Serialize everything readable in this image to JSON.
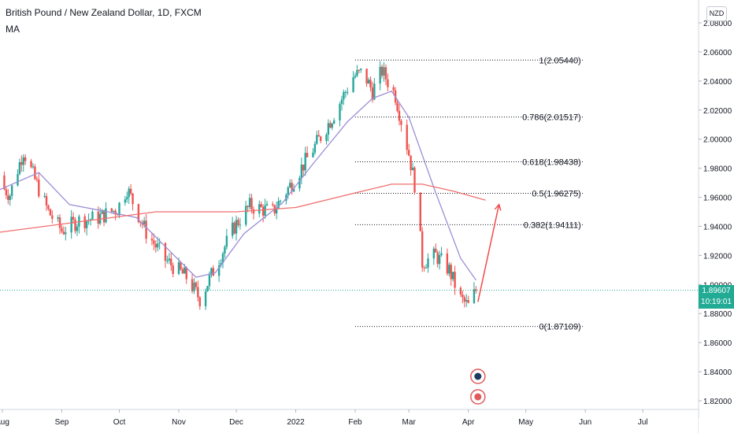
{
  "header": {
    "title": "British Pound / New Zealand Dollar, 1D, FXCM",
    "indicator": "MA",
    "currency_button": "NZD"
  },
  "price_tag": {
    "price": "1.89607",
    "countdown": "10:19:01"
  },
  "colors": {
    "up": "#26a69a",
    "down": "#ef5350",
    "ma_fast": "#9c8ed6",
    "ma_slow": "#f06e6e",
    "arrow": "#f04a4a",
    "fib": "#131722",
    "current_price_line": "#22ab94"
  },
  "chart_data": {
    "type": "candlestick",
    "symbol": "GBPNZD",
    "timeframe": "1D",
    "ylim": [
      1.815,
      2.085
    ],
    "y_ticks": [
      "2.08000",
      "2.06000",
      "2.04000",
      "2.02000",
      "2.00000",
      "1.98000",
      "1.96000",
      "1.94000",
      "1.92000",
      "1.90000",
      "1.88000",
      "1.86000",
      "1.84000",
      "1.82000"
    ],
    "x_ticks": [
      {
        "label": "Aug",
        "date": "2021-08-01"
      },
      {
        "label": "Sep",
        "date": "2021-09-01"
      },
      {
        "label": "Oct",
        "date": "2021-10-01"
      },
      {
        "label": "Nov",
        "date": "2021-11-01"
      },
      {
        "label": "Dec",
        "date": "2021-12-01"
      },
      {
        "label": "2022",
        "date": "2022-01-01"
      },
      {
        "label": "Feb",
        "date": "2022-02-01"
      },
      {
        "label": "Mar",
        "date": "2022-03-01"
      },
      {
        "label": "Apr",
        "date": "2022-04-01"
      },
      {
        "label": "May",
        "date": "2022-05-01"
      },
      {
        "label": "Jun",
        "date": "2022-06-01"
      },
      {
        "label": "Jul",
        "date": "2022-07-01"
      }
    ],
    "price_anchors": [
      {
        "date": "2021-07-25",
        "close": 1.975
      },
      {
        "date": "2021-08-05",
        "close": 1.962
      },
      {
        "date": "2021-08-12",
        "close": 1.992
      },
      {
        "date": "2021-08-18",
        "close": 1.972
      },
      {
        "date": "2021-08-25",
        "close": 1.95
      },
      {
        "date": "2021-09-01",
        "close": 1.937
      },
      {
        "date": "2021-09-10",
        "close": 1.944
      },
      {
        "date": "2021-09-20",
        "close": 1.946
      },
      {
        "date": "2021-09-30",
        "close": 1.952
      },
      {
        "date": "2021-10-05",
        "close": 1.966
      },
      {
        "date": "2021-10-15",
        "close": 1.936
      },
      {
        "date": "2021-10-25",
        "close": 1.917
      },
      {
        "date": "2021-11-05",
        "close": 1.905
      },
      {
        "date": "2021-11-12",
        "close": 1.89
      },
      {
        "date": "2021-11-20",
        "close": 1.912
      },
      {
        "date": "2021-11-30",
        "close": 1.94
      },
      {
        "date": "2021-12-08",
        "close": 1.954
      },
      {
        "date": "2021-12-20",
        "close": 1.95
      },
      {
        "date": "2021-12-31",
        "close": 1.972
      },
      {
        "date": "2022-01-10",
        "close": 1.993
      },
      {
        "date": "2022-01-20",
        "close": 2.015
      },
      {
        "date": "2022-01-31",
        "close": 2.043
      },
      {
        "date": "2022-02-05",
        "close": 2.046
      },
      {
        "date": "2022-02-10",
        "close": 2.033
      },
      {
        "date": "2022-02-15",
        "close": 2.047
      },
      {
        "date": "2022-02-22",
        "close": 2.03
      },
      {
        "date": "2022-03-01",
        "close": 1.99
      },
      {
        "date": "2022-03-05",
        "close": 1.962
      },
      {
        "date": "2022-03-08",
        "close": 1.915
      },
      {
        "date": "2022-03-15",
        "close": 1.92
      },
      {
        "date": "2022-03-22",
        "close": 1.91
      },
      {
        "date": "2022-03-28",
        "close": 1.89
      },
      {
        "date": "2022-04-01",
        "close": 1.885
      },
      {
        "date": "2022-04-05",
        "close": 1.896
      }
    ],
    "series": [
      {
        "name": "MA",
        "color": "#9c8ed6",
        "points": [
          {
            "date": "2021-07-25",
            "value": 1.962
          },
          {
            "date": "2021-08-20",
            "value": 1.977
          },
          {
            "date": "2021-09-05",
            "value": 1.955
          },
          {
            "date": "2021-09-25",
            "value": 1.95
          },
          {
            "date": "2021-10-10",
            "value": 1.946
          },
          {
            "date": "2021-10-25",
            "value": 1.926
          },
          {
            "date": "2021-11-10",
            "value": 1.905
          },
          {
            "date": "2021-11-20",
            "value": 1.908
          },
          {
            "date": "2021-12-05",
            "value": 1.935
          },
          {
            "date": "2021-12-25",
            "value": 1.956
          },
          {
            "date": "2022-01-10",
            "value": 1.983
          },
          {
            "date": "2022-01-28",
            "value": 2.012
          },
          {
            "date": "2022-02-10",
            "value": 2.028
          },
          {
            "date": "2022-02-20",
            "value": 2.033
          },
          {
            "date": "2022-03-01",
            "value": 2.015
          },
          {
            "date": "2022-03-15",
            "value": 1.963
          },
          {
            "date": "2022-03-28",
            "value": 1.918
          },
          {
            "date": "2022-04-05",
            "value": 1.903
          }
        ]
      },
      {
        "name": "MA",
        "color": "#f06e6e",
        "points": [
          {
            "date": "2021-07-25",
            "value": 1.935
          },
          {
            "date": "2021-09-15",
            "value": 1.944
          },
          {
            "date": "2021-10-20",
            "value": 1.95
          },
          {
            "date": "2021-12-01",
            "value": 1.95
          },
          {
            "date": "2022-01-01",
            "value": 1.953
          },
          {
            "date": "2022-02-01",
            "value": 1.963
          },
          {
            "date": "2022-02-20",
            "value": 1.969
          },
          {
            "date": "2022-03-08",
            "value": 1.969
          },
          {
            "date": "2022-03-25",
            "value": 1.964
          },
          {
            "date": "2022-04-10",
            "value": 1.958
          }
        ]
      }
    ],
    "fibonacci": {
      "from_date": "2022-02-01",
      "to_date": "2022-05-31",
      "levels": [
        {
          "label": "1(2.05440)",
          "value": 2.0544
        },
        {
          "label": "0.786(2.01517)",
          "value": 2.01517
        },
        {
          "label": "0.618(1.98438)",
          "value": 1.98438
        },
        {
          "label": "0.5(1.96275)",
          "value": 1.96275
        },
        {
          "label": "0.382(1.94111)",
          "value": 1.94111
        },
        {
          "label": "0(1.87109)",
          "value": 1.87109
        }
      ]
    },
    "current_price": 1.89607,
    "projection_arrow": [
      {
        "date": "2022-04-06",
        "value": 1.888
      },
      {
        "date": "2022-04-17",
        "value": 1.955
      }
    ],
    "event_icons_count": 2
  }
}
